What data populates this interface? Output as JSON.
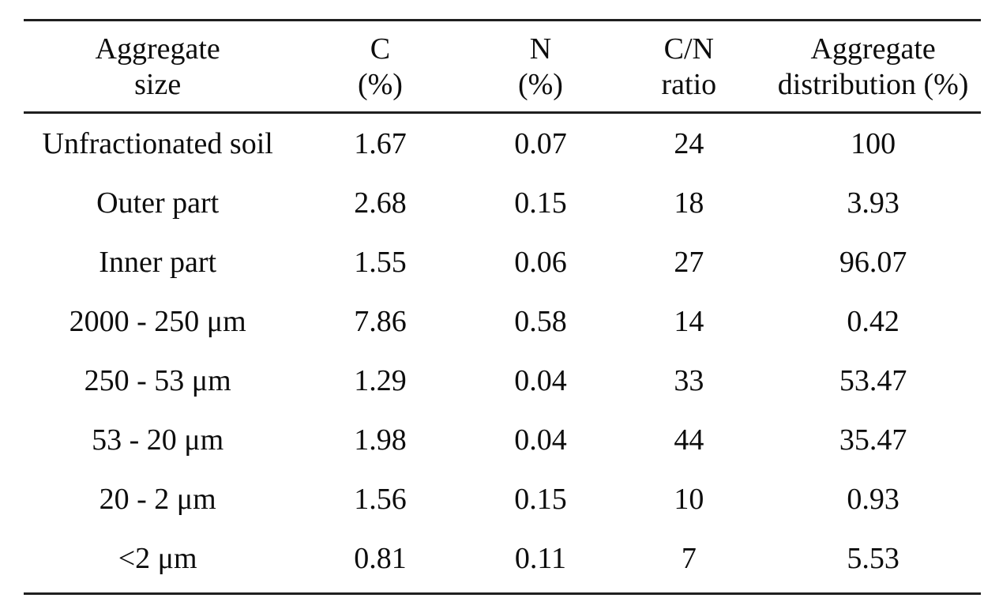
{
  "colors": {
    "background": "#ffffff",
    "text": "#0d0d0d",
    "rule": "#1f1f1f"
  },
  "table": {
    "columns": [
      {
        "id": "aggregate_size",
        "line1": "Aggregate",
        "line2": "size"
      },
      {
        "id": "c_percent",
        "line1": "C",
        "line2": "(%)"
      },
      {
        "id": "n_percent",
        "line1": "N",
        "line2": "(%)"
      },
      {
        "id": "cn_ratio",
        "line1": "C/N",
        "line2": "ratio"
      },
      {
        "id": "aggregate_distribution",
        "line1": "Aggregate",
        "line2": "distribution (%)"
      }
    ],
    "rows": [
      [
        "Unfractionated soil",
        "1.67",
        "0.07",
        "24",
        "100"
      ],
      [
        "Outer part",
        "2.68",
        "0.15",
        "18",
        "3.93"
      ],
      [
        "Inner part",
        "1.55",
        "0.06",
        "27",
        "96.07"
      ],
      [
        "2000 - 250 μm",
        "7.86",
        "0.58",
        "14",
        "0.42"
      ],
      [
        "250 - 53 μm",
        "1.29",
        "0.04",
        "33",
        "53.47"
      ],
      [
        "53 - 20 μm",
        "1.98",
        "0.04",
        "44",
        "35.47"
      ],
      [
        "20 - 2 μm",
        "1.56",
        "0.15",
        "10",
        "0.93"
      ],
      [
        "<2 μm",
        "0.81",
        "0.11",
        "7",
        "5.53"
      ]
    ]
  }
}
